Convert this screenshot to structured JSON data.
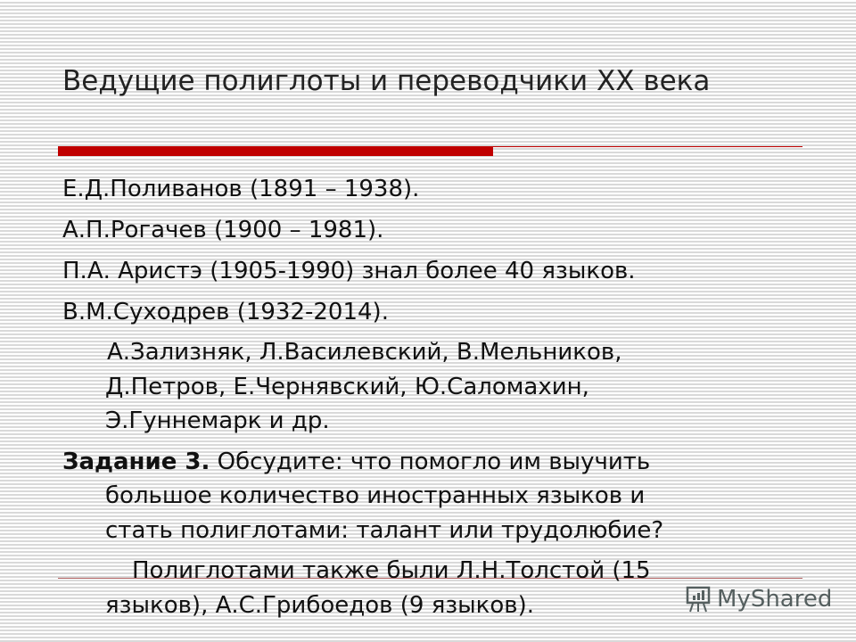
{
  "title": "Ведущие полиглоты и переводчики XX века",
  "lines": [
    "Е.Д.Поливанов (1891 – 1938).",
    "А.П.Рогачев (1900 – 1981).",
    "П.А. Аристэ (1905-1990) знал более 40 языков.",
    "В.М.Суходрев (1932-2014).",
    " А.Зализняк, Л.Василевский, В.Мельников,",
    "Д.Петров, Е.Чернявский, Ю.Саломахин,",
    "Э.Гуннемарк и др."
  ],
  "task": {
    "label": "Задание 3.",
    "line1": " Обсудите: что помогло им выучить",
    "line2": "большое количество иностранных языков и",
    "line3": "стать полиглотами: талант или трудолюбие?"
  },
  "note": {
    "line1": "Полиглотами также были Л.Н.Толстой (15",
    "line2": "языков), А.С.Грибоедов (9 языков)."
  },
  "watermark": {
    "text": "MyShared",
    "icon": "presentation-board-icon"
  },
  "colors": {
    "accent": "#c00000"
  }
}
